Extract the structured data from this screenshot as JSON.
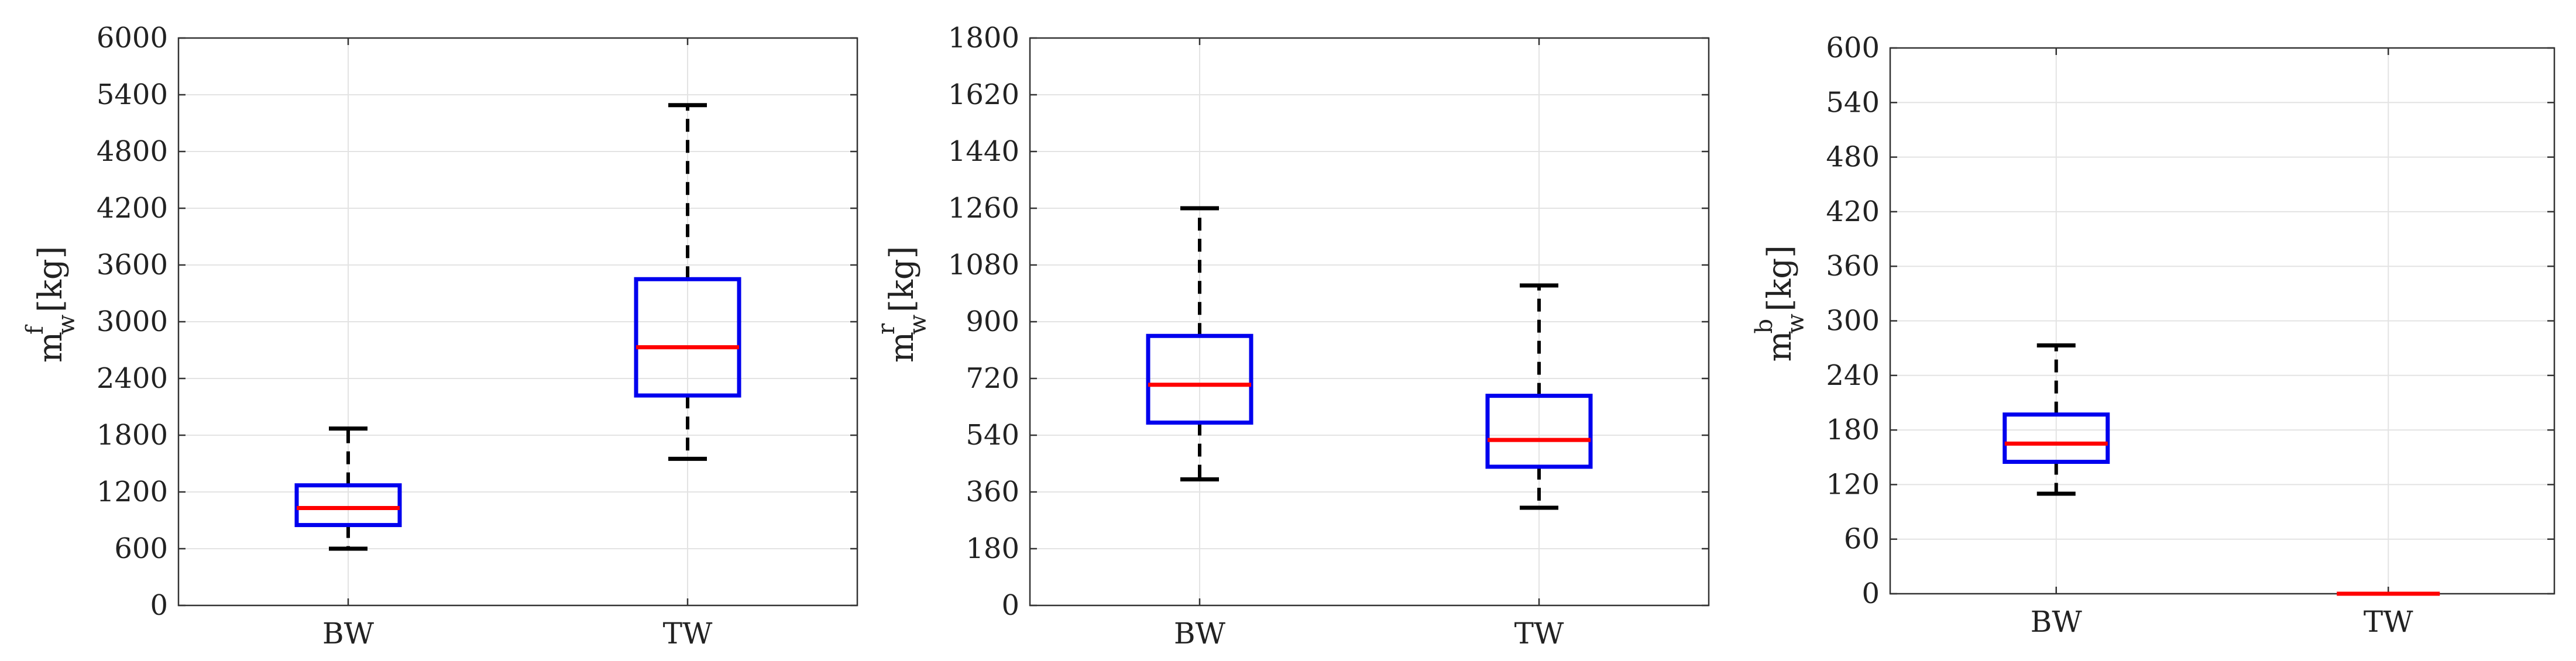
{
  "colors": {
    "box": "#0000ee",
    "median": "#ff0000",
    "whisker": "#000000",
    "grid": "#e3e3e3",
    "axes": "#333333"
  },
  "chart_data": [
    {
      "type": "box",
      "ylabel": {
        "main": "m",
        "sup": "f",
        "sub": "w",
        "unit": "[kg]"
      },
      "ylim": [
        0,
        6000
      ],
      "yticks": [
        "0",
        "600",
        "1200",
        "1800",
        "2400",
        "3000",
        "3600",
        "4200",
        "4800",
        "5400",
        "6000"
      ],
      "categories": [
        "BW",
        "TW"
      ],
      "boxes": [
        {
          "category": "BW",
          "whisker_low": 600,
          "q1": 850,
          "median": 1030,
          "q3": 1270,
          "whisker_high": 1870
        },
        {
          "category": "TW",
          "whisker_low": 1550,
          "q1": 2220,
          "median": 2730,
          "q3": 3450,
          "whisker_high": 5290
        }
      ],
      "grid": true
    },
    {
      "type": "box",
      "ylabel": {
        "main": "m",
        "sup": "r",
        "sub": "w",
        "unit": "[kg]"
      },
      "ylim": [
        0,
        1800
      ],
      "yticks": [
        "0",
        "180",
        "360",
        "540",
        "720",
        "900",
        "1080",
        "1260",
        "1440",
        "1620",
        "1800"
      ],
      "categories": [
        "BW",
        "TW"
      ],
      "boxes": [
        {
          "category": "BW",
          "whisker_low": 400,
          "q1": 580,
          "median": 700,
          "q3": 855,
          "whisker_high": 1260
        },
        {
          "category": "TW",
          "whisker_low": 310,
          "q1": 440,
          "median": 525,
          "q3": 665,
          "whisker_high": 1015
        }
      ],
      "grid": true
    },
    {
      "type": "box",
      "ylabel": {
        "main": "m",
        "sup": "b",
        "sub": "w",
        "unit": "[kg]"
      },
      "ylim": [
        0,
        600
      ],
      "yticks": [
        "0",
        "60",
        "120",
        "180",
        "240",
        "300",
        "360",
        "420",
        "480",
        "540",
        "600"
      ],
      "categories": [
        "BW",
        "TW"
      ],
      "boxes": [
        {
          "category": "BW",
          "whisker_low": 110,
          "q1": 145,
          "median": 165,
          "q3": 197,
          "whisker_high": 273
        },
        {
          "category": "TW",
          "whisker_low": 0,
          "q1": 0,
          "median": 0,
          "q3": 0,
          "whisker_high": 0
        }
      ],
      "grid": true
    }
  ]
}
